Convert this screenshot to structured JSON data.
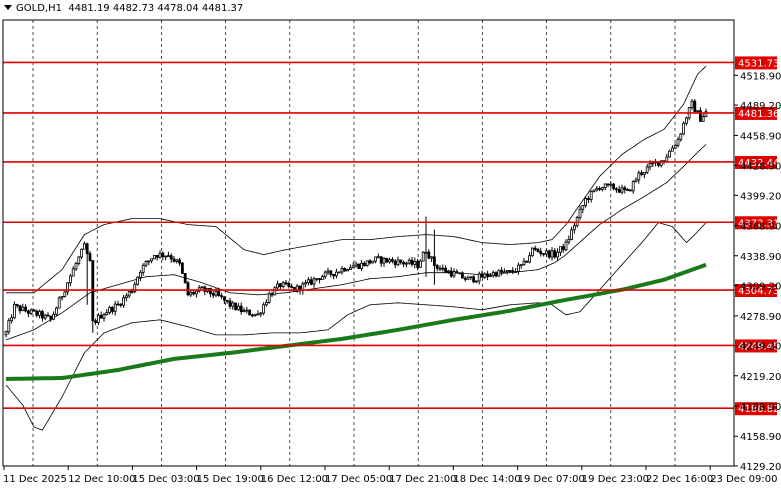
{
  "header": {
    "symbol": "GOLD,H1",
    "ohlc": "4481.19 4482.73 4478.04 4481.37"
  },
  "colors": {
    "background": "#ffffff",
    "candle": "#000000",
    "bollinger": "#000000",
    "moving_average": "#1a7a1a",
    "level_lines": "#e00000",
    "level_label_bg": "#e00000",
    "level_label_text": "#ffffff",
    "grid": "#000000"
  },
  "chart_data": {
    "type": "candlestick",
    "title": "",
    "ylim": [
      4129.2,
      4540
    ],
    "grid": true,
    "price_axis_labels": [
      "4518.90",
      "4489.20",
      "4458.90",
      "4428.90",
      "4399.20",
      "4368.90",
      "4338.90",
      "4309.20",
      "4278.90",
      "4249.20",
      "4219.20",
      "4188.90",
      "4158.90",
      "4129.20"
    ],
    "time_axis_labels": [
      "11 Dec 2025",
      "12 Dec 10:00",
      "15 Dec 03:00",
      "15 Dec 19:00",
      "16 Dec 12:00",
      "17 Dec 05:00",
      "17 Dec 21:00",
      "18 Dec 14:00",
      "19 Dec 07:00",
      "19 Dec 23:00",
      "22 Dec 16:00",
      "23 Dec 09:00"
    ],
    "levels": [
      {
        "value": 4531.73,
        "label": "4531.73"
      },
      {
        "value": 4481.36,
        "label": "4481.36"
      },
      {
        "value": 4432.44,
        "label": "4432.44"
      },
      {
        "value": 4372.31,
        "label": "4372.31"
      },
      {
        "value": 4304.73,
        "label": "4304.73"
      },
      {
        "value": 4249.45,
        "label": "4249.45"
      },
      {
        "value": 4186.82,
        "label": "4186.82"
      }
    ],
    "close_waypoints": [
      [
        0,
        4262
      ],
      [
        3,
        4288
      ],
      [
        8,
        4283
      ],
      [
        12,
        4280
      ],
      [
        16,
        4275
      ],
      [
        20,
        4300
      ],
      [
        24,
        4325
      ],
      [
        28,
        4348
      ],
      [
        30,
        4332
      ],
      [
        31,
        4272
      ],
      [
        35,
        4282
      ],
      [
        40,
        4290
      ],
      [
        45,
        4305
      ],
      [
        48,
        4325
      ],
      [
        53,
        4340
      ],
      [
        58,
        4340
      ],
      [
        62,
        4330
      ],
      [
        65,
        4300
      ],
      [
        70,
        4305
      ],
      [
        75,
        4300
      ],
      [
        80,
        4290
      ],
      [
        85,
        4283
      ],
      [
        90,
        4280
      ],
      [
        94,
        4300
      ],
      [
        98,
        4310
      ],
      [
        103,
        4305
      ],
      [
        107,
        4310
      ],
      [
        112,
        4318
      ],
      [
        117,
        4322
      ],
      [
        122,
        4328
      ],
      [
        127,
        4330
      ],
      [
        132,
        4335
      ],
      [
        137,
        4334
      ],
      [
        142,
        4332
      ],
      [
        147,
        4330
      ],
      [
        150,
        4345
      ],
      [
        153,
        4330
      ],
      [
        156,
        4325
      ],
      [
        161,
        4320
      ],
      [
        165,
        4315
      ],
      [
        170,
        4318
      ],
      [
        175,
        4322
      ],
      [
        180,
        4322
      ],
      [
        185,
        4330
      ],
      [
        188,
        4345
      ],
      [
        192,
        4342
      ],
      [
        196,
        4340
      ],
      [
        200,
        4350
      ],
      [
        203,
        4370
      ],
      [
        207,
        4395
      ],
      [
        212,
        4408
      ],
      [
        217,
        4407
      ],
      [
        222,
        4402
      ],
      [
        226,
        4420
      ],
      [
        231,
        4430
      ],
      [
        235,
        4435
      ],
      [
        240,
        4455
      ],
      [
        243,
        4478
      ],
      [
        245,
        4490
      ],
      [
        248,
        4476
      ],
      [
        250,
        4482
      ]
    ],
    "bollinger_upper_waypoints": [
      [
        0,
        4302
      ],
      [
        10,
        4302
      ],
      [
        20,
        4325
      ],
      [
        28,
        4360
      ],
      [
        35,
        4370
      ],
      [
        45,
        4376
      ],
      [
        55,
        4376
      ],
      [
        65,
        4370
      ],
      [
        75,
        4368
      ],
      [
        85,
        4345
      ],
      [
        92,
        4340
      ],
      [
        100,
        4345
      ],
      [
        110,
        4350
      ],
      [
        120,
        4355
      ],
      [
        130,
        4355
      ],
      [
        140,
        4358
      ],
      [
        150,
        4360
      ],
      [
        160,
        4358
      ],
      [
        170,
        4352
      ],
      [
        180,
        4350
      ],
      [
        190,
        4352
      ],
      [
        195,
        4355
      ],
      [
        200,
        4370
      ],
      [
        205,
        4390
      ],
      [
        212,
        4418
      ],
      [
        220,
        4440
      ],
      [
        228,
        4455
      ],
      [
        235,
        4465
      ],
      [
        242,
        4490
      ],
      [
        247,
        4520
      ],
      [
        250,
        4528
      ]
    ],
    "bollinger_middle_waypoints": [
      [
        0,
        4255
      ],
      [
        10,
        4265
      ],
      [
        20,
        4282
      ],
      [
        30,
        4302
      ],
      [
        40,
        4310
      ],
      [
        50,
        4318
      ],
      [
        60,
        4320
      ],
      [
        70,
        4312
      ],
      [
        80,
        4302
      ],
      [
        90,
        4300
      ],
      [
        100,
        4302
      ],
      [
        110,
        4306
      ],
      [
        120,
        4310
      ],
      [
        130,
        4316
      ],
      [
        140,
        4318
      ],
      [
        150,
        4322
      ],
      [
        160,
        4322
      ],
      [
        170,
        4320
      ],
      [
        180,
        4322
      ],
      [
        190,
        4325
      ],
      [
        196,
        4332
      ],
      [
        200,
        4340
      ],
      [
        206,
        4355
      ],
      [
        212,
        4370
      ],
      [
        220,
        4385
      ],
      [
        228,
        4398
      ],
      [
        236,
        4412
      ],
      [
        242,
        4428
      ],
      [
        247,
        4442
      ],
      [
        250,
        4450
      ]
    ],
    "bollinger_lower_waypoints": [
      [
        0,
        4210
      ],
      [
        6,
        4190
      ],
      [
        10,
        4168
      ],
      [
        13,
        4165
      ],
      [
        20,
        4198
      ],
      [
        28,
        4242
      ],
      [
        35,
        4262
      ],
      [
        45,
        4272
      ],
      [
        55,
        4275
      ],
      [
        65,
        4268
      ],
      [
        75,
        4260
      ],
      [
        85,
        4260
      ],
      [
        95,
        4262
      ],
      [
        105,
        4262
      ],
      [
        115,
        4265
      ],
      [
        122,
        4280
      ],
      [
        130,
        4290
      ],
      [
        140,
        4292
      ],
      [
        150,
        4290
      ],
      [
        160,
        4288
      ],
      [
        170,
        4285
      ],
      [
        180,
        4290
      ],
      [
        190,
        4292
      ],
      [
        195,
        4290
      ],
      [
        200,
        4280
      ],
      [
        205,
        4283
      ],
      [
        212,
        4305
      ],
      [
        220,
        4330
      ],
      [
        228,
        4355
      ],
      [
        233,
        4372
      ],
      [
        238,
        4368
      ],
      [
        243,
        4352
      ],
      [
        246,
        4360
      ],
      [
        250,
        4372
      ]
    ],
    "moving_average_waypoints": [
      [
        0,
        4216
      ],
      [
        20,
        4217
      ],
      [
        40,
        4225
      ],
      [
        60,
        4236
      ],
      [
        80,
        4242
      ],
      [
        100,
        4249
      ],
      [
        120,
        4256
      ],
      [
        140,
        4265
      ],
      [
        160,
        4275
      ],
      [
        180,
        4284
      ],
      [
        200,
        4295
      ],
      [
        220,
        4305
      ],
      [
        235,
        4315
      ],
      [
        250,
        4330
      ]
    ],
    "spikes": [
      {
        "index": 29,
        "high": 4352,
        "low": 4290
      },
      {
        "index": 31,
        "high": 4320,
        "low": 4262
      },
      {
        "index": 150,
        "high": 4378,
        "low": 4318
      },
      {
        "index": 153,
        "high": 4365,
        "low": 4310
      }
    ]
  }
}
